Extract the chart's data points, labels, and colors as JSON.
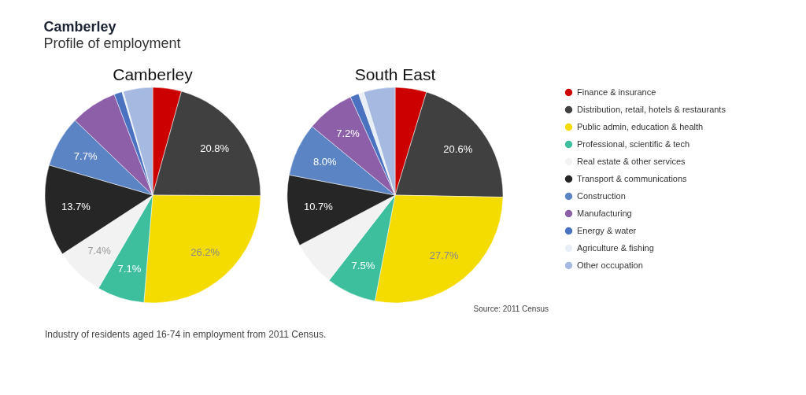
{
  "chart_data": [
    {
      "type": "other",
      "title": "Camberley",
      "subtitle": "Profile of employment",
      "annotations": [
        "Source: 2011 Census",
        "Industry of residents aged 16-74 in employment from 2011 Census."
      ]
    },
    {
      "type": "pie",
      "title": "Camberley",
      "categories": [
        "Finance & insurance",
        "Distribution, retail, hotels & restaurants",
        "Public admin, education & health",
        "Professional, scientific & tech",
        "Real estate & other services",
        "Transport & communications",
        "Construction",
        "Manufacturing",
        "Energy & water",
        "Agriculture & fishing",
        "Other occupation"
      ],
      "values": [
        4.3,
        20.8,
        26.2,
        7.1,
        7.4,
        13.7,
        7.7,
        7.0,
        1.2,
        0.2,
        4.4
      ],
      "value_labels": [
        null,
        "20.8%",
        "26.2%",
        "7.1%",
        "7.4%",
        "13.7%",
        "7.7%",
        null,
        null,
        null,
        null
      ],
      "colors": [
        "#cc0000",
        "#404040",
        "#f5dc00",
        "#3dbf9e",
        "#f2f2f2",
        "#262626",
        "#5b84c4",
        "#8c5fa8",
        "#4a72c0",
        "#e8eef5",
        "#a6b9e0"
      ],
      "legend": "right"
    },
    {
      "type": "pie",
      "title": "South East",
      "categories": [
        null,
        null,
        null,
        null,
        null,
        null,
        null,
        null,
        null,
        null,
        null
      ],
      "values": [
        4.7,
        20.6,
        27.7,
        7.5,
        6.8,
        10.7,
        8.0,
        7.2,
        1.3,
        0.8,
        4.7
      ],
      "value_labels": [
        null,
        "20.6%",
        "27.7%",
        "7.5%",
        null,
        "10.7%",
        "8.0%",
        "7.2%",
        null,
        null,
        null
      ],
      "colors": [
        "#cc0000",
        "#404040",
        "#f5dc00",
        "#3dbf9e",
        "#f2f2f2",
        "#262626",
        "#5b84c4",
        "#8c5fa8",
        "#4a72c0",
        "#e8eef5",
        "#a6b9e0"
      ],
      "legend": false
    }
  ]
}
